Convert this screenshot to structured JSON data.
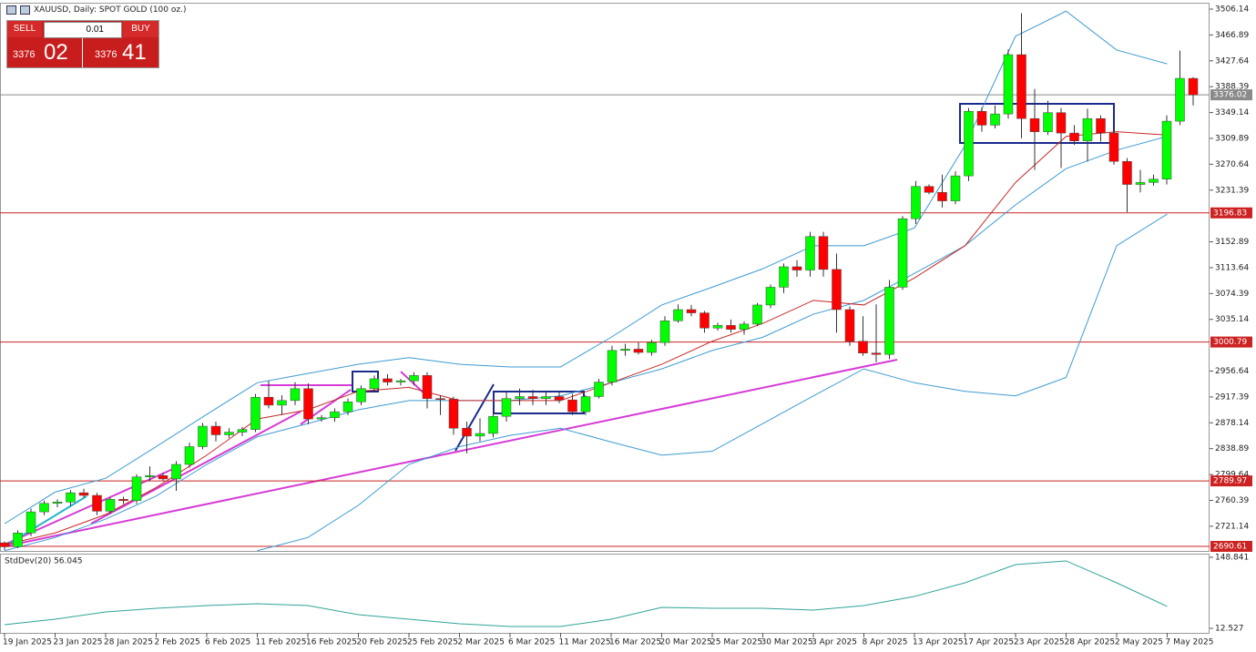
{
  "header": {
    "title": "XAUUSD, Daily:  SPOT GOLD (100 oz.)"
  },
  "trade_panel": {
    "sell": "SELL",
    "buy": "BUY",
    "lot": "0.01",
    "bid_prefix": "3376",
    "bid_digits": "02",
    "ask_prefix": "3376",
    "ask_digits": "41"
  },
  "chart_data": [
    {
      "type": "candlestick",
      "categories": [
        "19 Jan 2025",
        "23 Jan 2025",
        "28 Jan 2025",
        "2 Feb 2025",
        "6 Feb 2025",
        "11 Feb 2025",
        "16 Feb 2025",
        "20 Feb 2025",
        "25 Feb 2025",
        "2 Mar 2025",
        "6 Mar 2025",
        "11 Mar 2025",
        "16 Mar 2025",
        "20 Mar 2025",
        "25 Mar 2025",
        "30 Mar 2025",
        "3 Apr 2025",
        "8 Apr 2025",
        "13 Apr 2025",
        "17 Apr 2025",
        "23 Apr 2025",
        "28 Apr 2025",
        "2 May 2025",
        "7 May 2025"
      ],
      "open": [
        2696,
        2690,
        2711,
        2743,
        2756,
        2758,
        2772,
        2768,
        2744,
        2762,
        2760,
        2796,
        2798,
        2793,
        2815,
        2842,
        2873,
        2860,
        2864,
        2868,
        2917,
        2905,
        2912,
        2930,
        2884,
        2886,
        2895,
        2910,
        2930,
        2945,
        2940,
        2942,
        2950,
        2915,
        2914,
        2870,
        2858,
        2862,
        2888,
        2915,
        2918,
        2915,
        2918,
        2913,
        2895,
        2918,
        2940,
        2988,
        2990,
        2985,
        3000,
        3033,
        3050,
        3045,
        3022,
        3026,
        3020,
        3028,
        3057,
        3084,
        3115,
        3110,
        3161,
        3111,
        3050,
        3002,
        2984,
        2982,
        3084,
        3188,
        3237,
        3228,
        3215,
        3253,
        3351,
        3330,
        3347,
        3437,
        3340,
        3320,
        3349,
        3318,
        3306,
        3340,
        3318,
        3275,
        3240,
        3243,
        3248,
        3336,
        3401
      ],
      "high": [
        2698,
        2715,
        2748,
        2760,
        2762,
        2776,
        2778,
        2772,
        2765,
        2766,
        2800,
        2812,
        2802,
        2820,
        2848,
        2878,
        2880,
        2870,
        2872,
        2922,
        2942,
        2920,
        2940,
        2938,
        2890,
        2900,
        2915,
        2935,
        2950,
        2952,
        2945,
        2955,
        2955,
        2920,
        2918,
        2880,
        2885,
        2895,
        2925,
        2930,
        2928,
        2925,
        2925,
        2922,
        2920,
        2945,
        2995,
        2998,
        3000,
        3004,
        3040,
        3058,
        3057,
        3048,
        3030,
        3035,
        3032,
        3060,
        3088,
        3120,
        3125,
        3168,
        3168,
        3135,
        3055,
        3040,
        3058,
        3095,
        3192,
        3245,
        3240,
        3255,
        3260,
        3356,
        3357,
        3360,
        3445,
        3500,
        3385,
        3367,
        3356,
        3330,
        3355,
        3345,
        3325,
        3280,
        3262,
        3255,
        3345,
        3443,
        3403
      ],
      "low": [
        2685,
        2688,
        2706,
        2738,
        2750,
        2752,
        2765,
        2738,
        2740,
        2755,
        2755,
        2790,
        2790,
        2775,
        2810,
        2838,
        2850,
        2855,
        2858,
        2864,
        2900,
        2890,
        2905,
        2876,
        2880,
        2880,
        2890,
        2905,
        2925,
        2935,
        2935,
        2935,
        2900,
        2890,
        2860,
        2832,
        2850,
        2856,
        2880,
        2905,
        2905,
        2905,
        2908,
        2890,
        2890,
        2915,
        2935,
        2980,
        2982,
        2980,
        2995,
        3030,
        3040,
        3015,
        3018,
        3015,
        3012,
        3025,
        3052,
        3075,
        3100,
        3100,
        3100,
        3015,
        2995,
        2980,
        2970,
        2975,
        3080,
        3180,
        3225,
        3205,
        3210,
        3245,
        3320,
        3325,
        3340,
        3310,
        3262,
        3315,
        3265,
        3300,
        3275,
        3305,
        3270,
        3198,
        3228,
        3238,
        3240,
        3330,
        3360
      ],
      "close": [
        2690,
        2711,
        2743,
        2756,
        2758,
        2772,
        2768,
        2744,
        2762,
        2760,
        2796,
        2798,
        2793,
        2815,
        2842,
        2873,
        2860,
        2864,
        2868,
        2917,
        2905,
        2912,
        2930,
        2884,
        2886,
        2895,
        2910,
        2930,
        2945,
        2940,
        2942,
        2950,
        2915,
        2914,
        2870,
        2858,
        2862,
        2888,
        2915,
        2918,
        2915,
        2918,
        2913,
        2895,
        2918,
        2940,
        2988,
        2990,
        2985,
        3000,
        3033,
        3050,
        3045,
        3022,
        3026,
        3020,
        3028,
        3057,
        3084,
        3115,
        3110,
        3161,
        3111,
        3050,
        3002,
        2984,
        2982,
        3084,
        3188,
        3237,
        3228,
        3215,
        3253,
        3351,
        3330,
        3347,
        3437,
        3340,
        3320,
        3349,
        3318,
        3306,
        3340,
        3318,
        3275,
        3240,
        3243,
        3248,
        3336,
        3401,
        3376.02
      ],
      "up_color": "#00ff00",
      "down_color": "#ff0000",
      "ylim": [
        2683.7,
        3513.05
      ],
      "yticks": [
        3506.14,
        3466.89,
        3427.64,
        3388.39,
        3349.14,
        3309.89,
        3270.64,
        3231.39,
        3152.89,
        3113.64,
        3074.39,
        3035.14,
        2956.64,
        2917.39,
        2878.14,
        2838.89,
        2799.64,
        2760.39,
        2721.14
      ],
      "levels": [
        {
          "value": 3196.83,
          "color": "#cc2222"
        },
        {
          "value": 3000.79,
          "color": "#cc2222"
        },
        {
          "value": 2789.97,
          "color": "#cc2222"
        },
        {
          "value": 2690.61,
          "color": "#cc2222"
        }
      ],
      "current_price": {
        "value": 3376.02,
        "color": "#8a8a8a"
      },
      "series": [
        {
          "color": "#3d9bd1",
          "values": [
            2725,
            2773,
            2794,
            2842,
            2891,
            2939,
            2953,
            2967,
            2977,
            2967,
            2963,
            2963,
            3008,
            3057,
            3084,
            3112,
            3147,
            3147,
            3174,
            3299,
            3465,
            3503,
            3444,
            3423
          ]
        },
        {
          "color": "#3d9bd1",
          "values": [
            2684,
            2704,
            2732,
            2767,
            2815,
            2857,
            2877,
            2898,
            2912,
            2912,
            2912,
            2919,
            2939,
            2960,
            2988,
            3008,
            3043,
            3064,
            3105,
            3147,
            3209,
            3264,
            3292,
            3313
          ]
        },
        {
          "color": "#3d9bd1",
          "values": [
            null,
            null,
            null,
            null,
            null,
            2684,
            2704,
            2753,
            2815,
            2842,
            2859,
            2870,
            2849,
            2829,
            2835,
            2877,
            2919,
            2960,
            2939,
            2926,
            2919,
            2947,
            3147,
            3195
          ]
        },
        {
          "color": "#c62828",
          "values": [
            2693,
            2711,
            2739,
            2780,
            2829,
            2884,
            2898,
            2926,
            2932,
            2912,
            2912,
            2912,
            2939,
            2967,
            3002,
            3029,
            3064,
            3057,
            3098,
            3147,
            3243,
            3313,
            3320,
            3315
          ]
        }
      ]
    },
    {
      "type": "line",
      "title": "StdDev(20) 56.045",
      "ylim": [
        3.79,
        155.83
      ],
      "yticks": [
        148.841,
        12.527
      ],
      "series": [
        {
          "color": "#2fa39a",
          "values": [
            19.5,
            30,
            44,
            51,
            56.2,
            59.7,
            56.2,
            38.7,
            30,
            21.3,
            16,
            16,
            30,
            52.7,
            51,
            51,
            47.5,
            56.2,
            73.7,
            99.9,
            134.9,
            141.9,
            99.9,
            54.5
          ]
        }
      ]
    }
  ]
}
